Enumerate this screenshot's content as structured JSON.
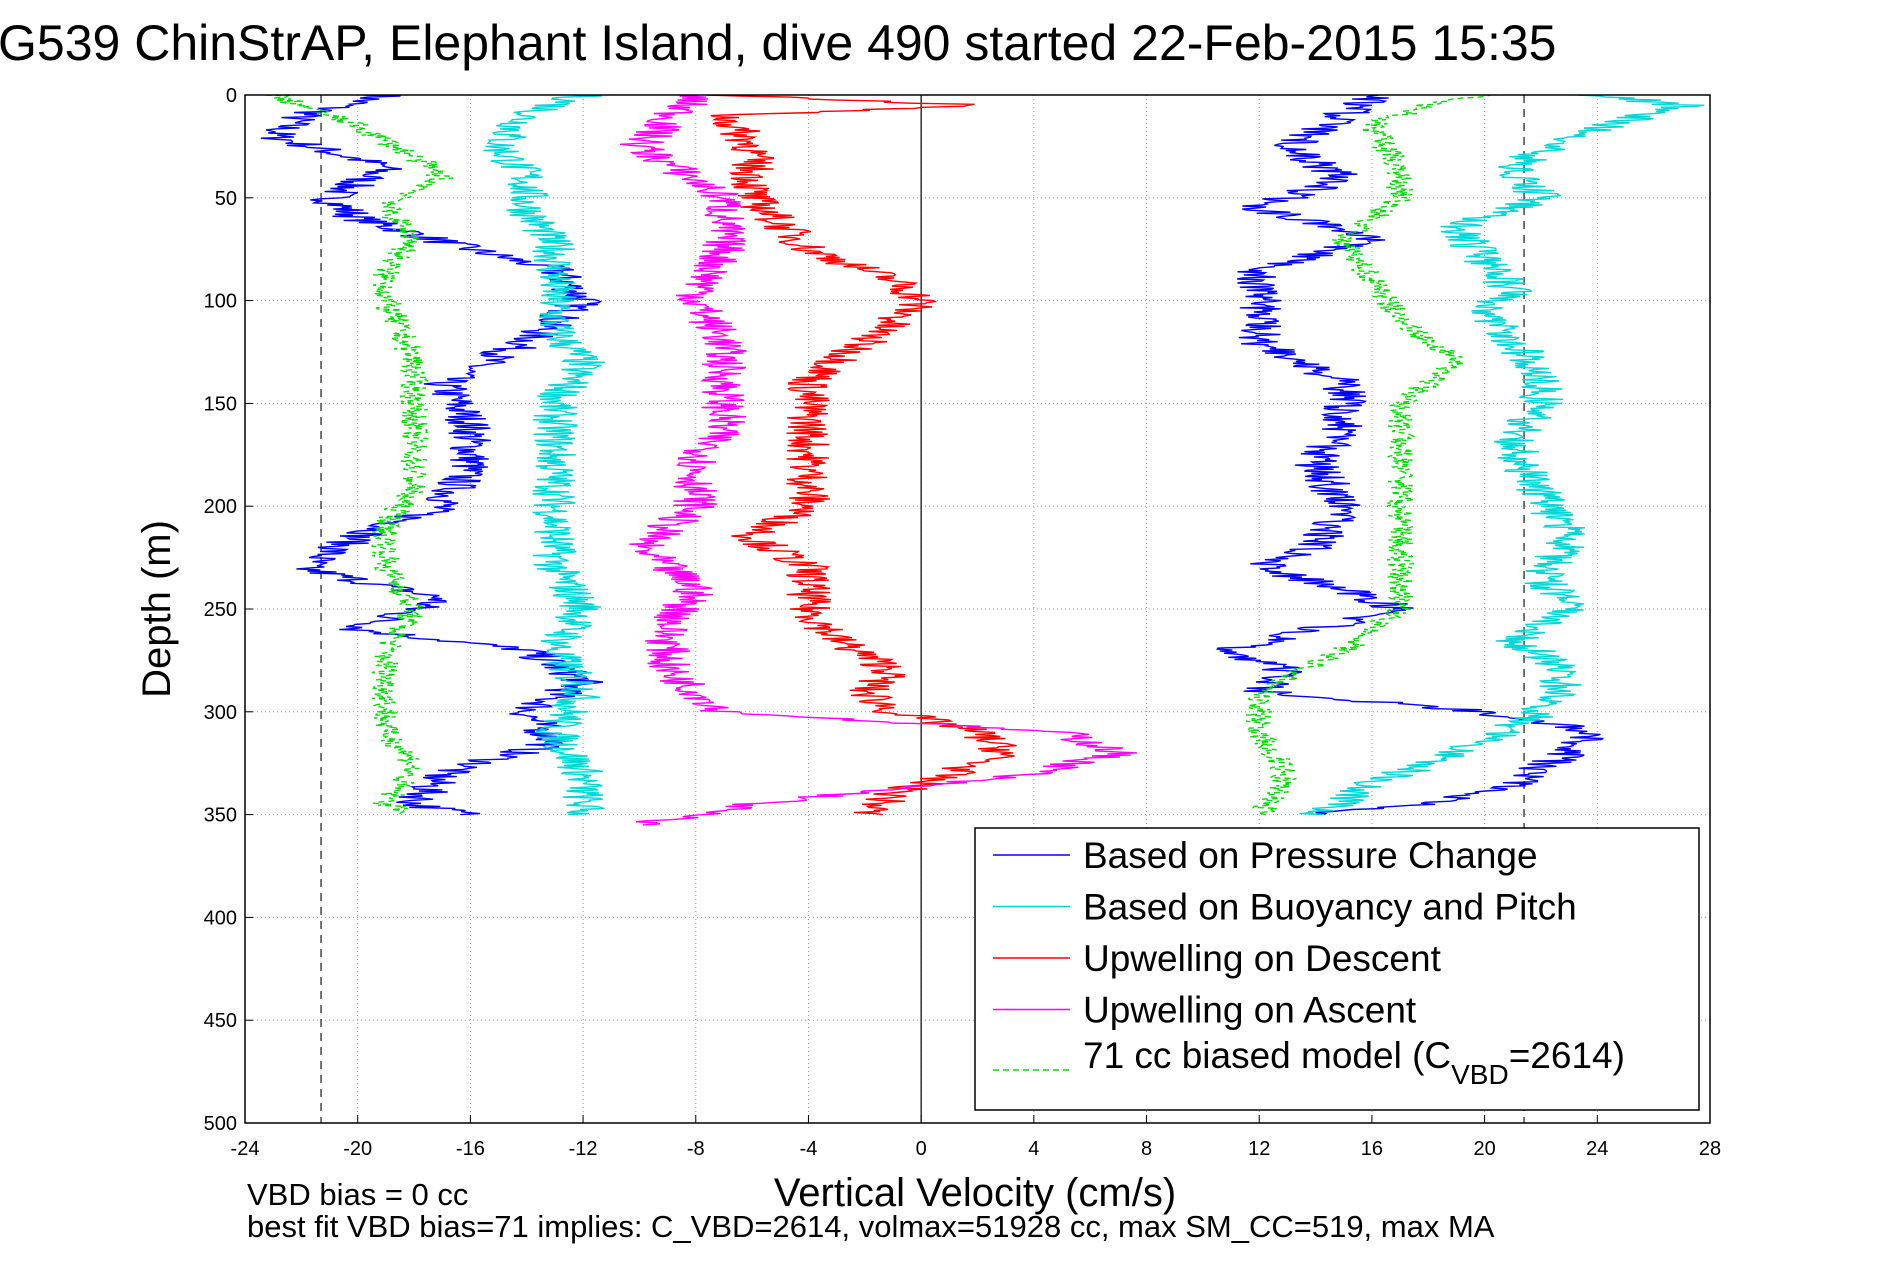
{
  "chart_data": {
    "type": "line",
    "title": "G539 ChinStrAP, Elephant Island, dive 490 started 22-Feb-2015 15:35",
    "xlabel": "Vertical Velocity (cm/s)",
    "ylabel": "Depth (m)",
    "xlim": [
      -24,
      28
    ],
    "ylim": [
      500,
      0
    ],
    "y_reversed": true,
    "grid": true,
    "xticks": [
      "-24",
      "-20",
      "-16",
      "-12",
      "-8",
      "-4",
      "0",
      "4",
      "8",
      "12",
      "16",
      "20",
      "24",
      "28"
    ],
    "yticks": [
      "0",
      "50",
      "100",
      "150",
      "200",
      "250",
      "300",
      "350",
      "400",
      "450",
      "500"
    ],
    "legend_placement": "bottom-right",
    "reference_lines": {
      "vertical_solid": [
        0
      ],
      "vertical_dashed": [
        -21.3,
        21.4
      ]
    },
    "series": [
      {
        "name": "Based on Pressure Change",
        "color": "#0000ff",
        "style": "solid",
        "descent": {
          "depth": [
            0,
            10,
            20,
            35,
            50,
            60,
            75,
            85,
            100,
            120,
            140,
            160,
            180,
            200,
            215,
            230,
            245,
            260,
            270,
            285,
            300,
            315,
            330,
            345,
            350
          ],
          "velocity": [
            -19,
            -22,
            -23,
            -19,
            -21,
            -20,
            -16,
            -13,
            -12,
            -14,
            -17,
            -16,
            -16,
            -17,
            -20,
            -22,
            -17,
            -20,
            -14,
            -12,
            -14,
            -13,
            -17,
            -18,
            -16
          ]
        },
        "ascent": {
          "depth": [
            350,
            345,
            335,
            320,
            310,
            300,
            290,
            280,
            270,
            260,
            250,
            240,
            230,
            220,
            200,
            180,
            160,
            140,
            120,
            100,
            85,
            70,
            55,
            40,
            25,
            10,
            0
          ],
          "velocity": [
            14,
            18,
            21,
            23,
            24,
            20,
            12,
            13,
            11,
            14,
            17,
            15,
            12,
            14,
            15,
            14,
            15,
            15,
            12,
            12,
            12,
            16,
            12,
            15,
            13,
            15,
            16
          ]
        }
      },
      {
        "name": "Based on Buoyancy and Pitch",
        "color": "#00d8d8",
        "style": "solid",
        "descent": {
          "depth": [
            0,
            10,
            25,
            40,
            55,
            75,
            95,
            115,
            130,
            150,
            170,
            200,
            230,
            250,
            270,
            290,
            310,
            330,
            350
          ],
          "velocity": [
            -12,
            -14,
            -15,
            -14,
            -14,
            -13,
            -13,
            -13,
            -12,
            -13,
            -13,
            -13,
            -13,
            -12,
            -13,
            -12,
            -13,
            -12,
            -12
          ]
        },
        "ascent": {
          "depth": [
            350,
            335,
            315,
            300,
            280,
            265,
            250,
            235,
            215,
            195,
            170,
            150,
            135,
            120,
            105,
            95,
            80,
            65,
            50,
            35,
            20,
            5,
            0
          ],
          "velocity": [
            14,
            16,
            20,
            22,
            23,
            21,
            23,
            22,
            23,
            22,
            21,
            22,
            22,
            21,
            20,
            21,
            20,
            19,
            22,
            21,
            23,
            27,
            24
          ]
        }
      },
      {
        "name": "Upwelling on Descent",
        "color": "#ff0000",
        "style": "solid",
        "profile": {
          "depth": [
            0,
            5,
            10,
            25,
            50,
            75,
            90,
            100,
            120,
            140,
            160,
            180,
            200,
            215,
            230,
            250,
            265,
            280,
            290,
            300,
            310,
            320,
            340,
            350
          ],
          "velocity": [
            -7,
            2,
            -7,
            -6,
            -6,
            -4,
            -1,
            0,
            -2,
            -4,
            -4,
            -4,
            -4,
            -6,
            -4,
            -4,
            -3,
            -1,
            -2,
            -1,
            2,
            3,
            -1,
            -2
          ]
        }
      },
      {
        "name": "Upwelling on Ascent",
        "color": "#ff00ff",
        "style": "solid",
        "profile": {
          "depth": [
            0,
            25,
            50,
            75,
            100,
            120,
            140,
            160,
            180,
            200,
            220,
            240,
            260,
            280,
            300,
            310,
            320,
            330,
            345,
            355
          ],
          "velocity": [
            -8,
            -10,
            -7,
            -7,
            -8,
            -7,
            -7,
            -7,
            -8,
            -8,
            -10,
            -8,
            -9,
            -9,
            -7,
            5,
            7,
            4,
            -6,
            -10
          ]
        }
      },
      {
        "name": "71 cc biased model (C_VBD=2614)",
        "color": "#00e000",
        "style": "dashed",
        "descent": {
          "depth": [
            0,
            15,
            30,
            40,
            55,
            70,
            85,
            100,
            130,
            160,
            190,
            210,
            230,
            250,
            270,
            290,
            310,
            325,
            345,
            350
          ],
          "velocity": [
            -23,
            -20,
            -18,
            -17,
            -19,
            -18,
            -19,
            -19,
            -18,
            -18,
            -18,
            -19,
            -19,
            -18,
            -19,
            -19,
            -19,
            -18,
            -19,
            -18
          ]
        },
        "ascent": {
          "depth": [
            350,
            330,
            310,
            290,
            270,
            250,
            230,
            210,
            190,
            170,
            150,
            130,
            110,
            90,
            70,
            50,
            35,
            15,
            5,
            0
          ],
          "velocity": [
            12,
            13,
            12,
            12,
            15,
            17,
            17,
            17,
            17,
            17,
            17,
            19,
            17,
            16,
            15,
            17,
            17,
            16,
            18,
            20
          ]
        }
      }
    ],
    "legend": {
      "entries": [
        "Based on Pressure Change",
        "Based on Buoyancy and Pitch",
        "Upwelling on Descent",
        "Upwelling on Ascent"
      ],
      "model_entry": {
        "prefix": "71 cc biased model (C",
        "subscript": "VBD",
        "suffix": "=2614)"
      }
    },
    "footnotes": [
      "VBD bias = 0 cc",
      "best fit VBD bias=71 implies: C_VBD=2614, volmax=51928 cc, max SM_CC=519, max MA"
    ]
  }
}
